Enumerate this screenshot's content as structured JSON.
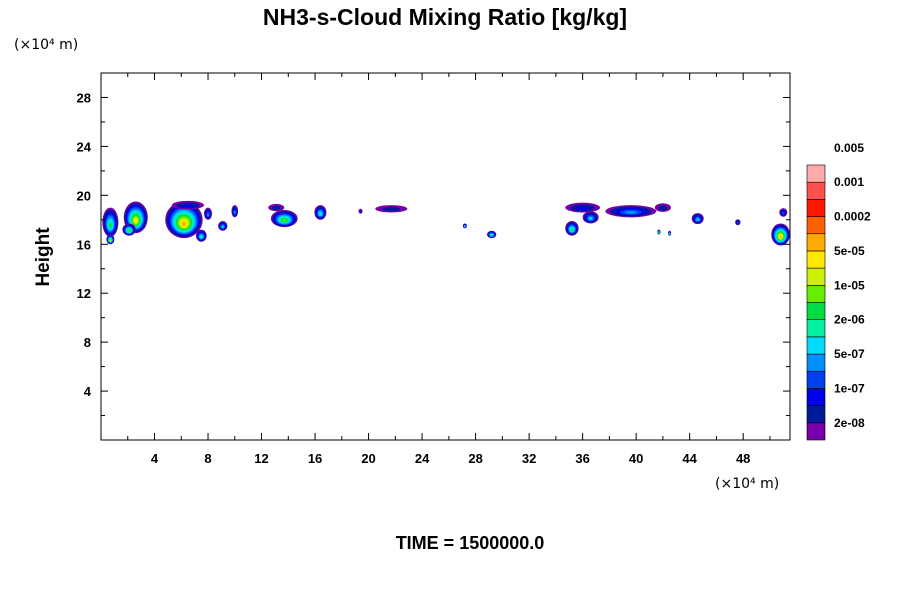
{
  "chart_data": {
    "type": "heatmap",
    "title": "NH3-s-Cloud Mixing Ratio [kg/kg]",
    "x_unit": "(×10⁴ m)",
    "y_unit": "(×10⁴ m)",
    "xlabel": "",
    "ylabel": "Height",
    "xlim": [
      0,
      51.5
    ],
    "ylim": [
      0,
      30
    ],
    "x_ticks": [
      4,
      8,
      12,
      16,
      20,
      24,
      28,
      32,
      36,
      40,
      44,
      48
    ],
    "y_ticks": [
      4,
      8,
      12,
      16,
      20,
      24,
      28
    ],
    "footer": "TIME = 1500000.0",
    "colorbar": {
      "colors": [
        "#7700aa",
        "#001a99",
        "#0000ee",
        "#0040f0",
        "#0090ff",
        "#00dcff",
        "#00f0a0",
        "#00dd44",
        "#66ee00",
        "#ccf000",
        "#ffe800",
        "#ffaa00",
        "#ff6000",
        "#ff1800",
        "#ff5050",
        "#ffaaaa"
      ],
      "labels": [
        "2e-08",
        "1e-07",
        "5e-07",
        "2e-06",
        "1e-05",
        "5e-05",
        "0.0002",
        "0.001",
        "0.005"
      ]
    },
    "cloud_blobs": [
      {
        "x": 0.7,
        "y": 17.8,
        "rx": 0.6,
        "ry": 1.2,
        "peak": 7
      },
      {
        "x": 0.7,
        "y": 16.4,
        "rx": 0.3,
        "ry": 0.4,
        "peak": 9
      },
      {
        "x": 2.6,
        "y": 18.2,
        "rx": 0.9,
        "ry": 1.3,
        "peak": 10
      },
      {
        "x": 2.1,
        "y": 17.2,
        "rx": 0.5,
        "ry": 0.5,
        "peak": 8
      },
      {
        "x": 6.2,
        "y": 18.0,
        "rx": 1.4,
        "ry": 1.5,
        "peak": 11
      },
      {
        "x": 6.5,
        "y": 19.2,
        "rx": 1.2,
        "ry": 0.35,
        "peak": 2
      },
      {
        "x": 7.5,
        "y": 16.7,
        "rx": 0.4,
        "ry": 0.5,
        "peak": 6
      },
      {
        "x": 8.0,
        "y": 18.5,
        "rx": 0.3,
        "ry": 0.5,
        "peak": 4
      },
      {
        "x": 9.1,
        "y": 17.5,
        "rx": 0.35,
        "ry": 0.4,
        "peak": 5
      },
      {
        "x": 10.0,
        "y": 18.7,
        "rx": 0.25,
        "ry": 0.5,
        "peak": 4
      },
      {
        "x": 13.7,
        "y": 18.1,
        "rx": 1.0,
        "ry": 0.7,
        "peak": 8
      },
      {
        "x": 13.1,
        "y": 19.0,
        "rx": 0.6,
        "ry": 0.3,
        "peak": 1
      },
      {
        "x": 16.4,
        "y": 18.6,
        "rx": 0.45,
        "ry": 0.6,
        "peak": 6
      },
      {
        "x": 21.7,
        "y": 18.9,
        "rx": 1.2,
        "ry": 0.3,
        "peak": 1
      },
      {
        "x": 19.4,
        "y": 18.7,
        "rx": 0.15,
        "ry": 0.2,
        "peak": 1
      },
      {
        "x": 27.2,
        "y": 17.5,
        "rx": 0.15,
        "ry": 0.2,
        "peak": 5
      },
      {
        "x": 29.2,
        "y": 16.8,
        "rx": 0.35,
        "ry": 0.3,
        "peak": 7
      },
      {
        "x": 36.0,
        "y": 19.0,
        "rx": 1.3,
        "ry": 0.4,
        "peak": 2
      },
      {
        "x": 35.2,
        "y": 17.3,
        "rx": 0.5,
        "ry": 0.6,
        "peak": 7
      },
      {
        "x": 36.6,
        "y": 18.2,
        "rx": 0.6,
        "ry": 0.5,
        "peak": 5
      },
      {
        "x": 39.6,
        "y": 18.7,
        "rx": 1.9,
        "ry": 0.5,
        "peak": 4
      },
      {
        "x": 42.0,
        "y": 19.0,
        "rx": 0.6,
        "ry": 0.35,
        "peak": 1
      },
      {
        "x": 41.7,
        "y": 17.0,
        "rx": 0.12,
        "ry": 0.2,
        "peak": 7
      },
      {
        "x": 42.5,
        "y": 16.9,
        "rx": 0.12,
        "ry": 0.2,
        "peak": 5
      },
      {
        "x": 44.6,
        "y": 18.1,
        "rx": 0.45,
        "ry": 0.45,
        "peak": 5
      },
      {
        "x": 47.6,
        "y": 17.8,
        "rx": 0.2,
        "ry": 0.25,
        "peak": 3
      },
      {
        "x": 50.8,
        "y": 16.8,
        "rx": 0.7,
        "ry": 0.9,
        "peak": 11
      },
      {
        "x": 51.0,
        "y": 18.6,
        "rx": 0.3,
        "ry": 0.35,
        "peak": 3
      }
    ]
  }
}
